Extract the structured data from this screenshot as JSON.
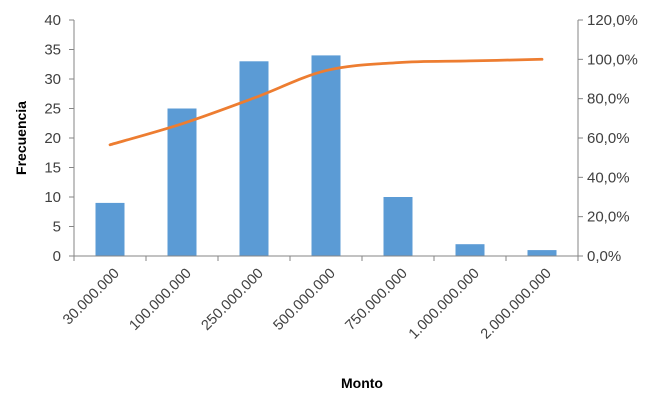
{
  "chart_data": {
    "type": "bar",
    "categories": [
      "30.000.000",
      "100.000.000",
      "250.000.000",
      "500.000.000",
      "750.000.000",
      "1.000.000.000",
      "2.000.000.000"
    ],
    "series": [
      {
        "values": [
          9,
          25,
          33,
          34,
          10,
          2,
          1
        ],
        "axis": "left",
        "kind": "bar",
        "color": "#5B9BD5"
      },
      {
        "values": [
          0.5655,
          0.6721,
          0.8033,
          0.9426,
          0.9836,
          0.9918,
          1.0
        ],
        "axis": "right",
        "kind": "line",
        "color": "#ED7D31"
      }
    ],
    "xlabel": "Monto",
    "ylabel": "Frecuencia",
    "ylim": [
      0,
      40
    ],
    "y_ticks": [
      "0",
      "5",
      "10",
      "15",
      "20",
      "25",
      "30",
      "35",
      "40"
    ],
    "y2lim": [
      0,
      1.2
    ],
    "y2_ticks": [
      "0,0%",
      "20,0%",
      "40,0%",
      "60,0%",
      "80,0%",
      "100,0%",
      "120,0%"
    ],
    "grid": false,
    "legend": "none"
  }
}
